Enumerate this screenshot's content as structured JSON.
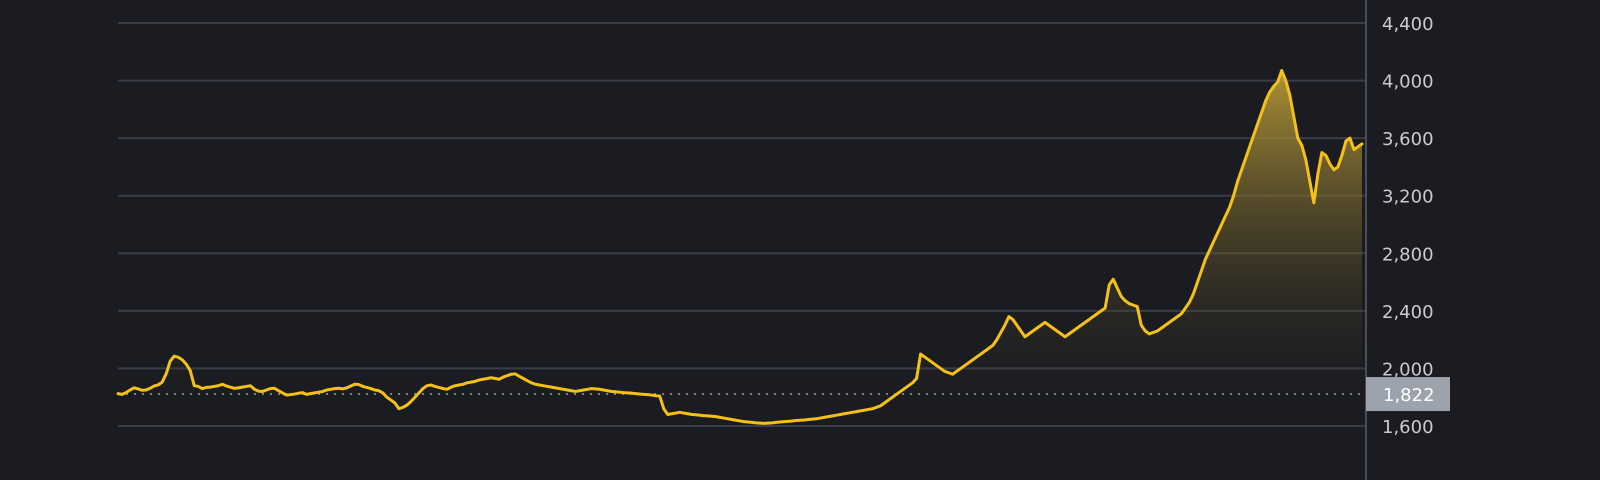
{
  "colors": {
    "background": "#1b1c21",
    "grid": "#3a3d46",
    "axis_line": "#4a4e58",
    "line": "#f3c117",
    "fill_top": "#c9a83a",
    "fill_bottom": "#1b1c21",
    "reference_line": "#9aa0ab",
    "badge_bg": "#9da3ad",
    "tick_text": "#c9cbd1"
  },
  "reference": {
    "value": 1822,
    "label": "1,822"
  },
  "chart_data": {
    "type": "area",
    "title": "",
    "xlabel": "",
    "ylabel": "",
    "grid": true,
    "y_axis_position": "right",
    "ylim": [
      1500,
      4500
    ],
    "y_ticks": [
      1600,
      2000,
      2400,
      2800,
      3200,
      3600,
      4000,
      4400
    ],
    "y_tick_labels": [
      "1,600",
      "2,000",
      "2,400",
      "2,800",
      "3,200",
      "3,600",
      "4,000",
      "4,400"
    ],
    "series": [
      {
        "values": [
          1825,
          1820,
          1832,
          1850,
          1865,
          1858,
          1848,
          1850,
          1862,
          1878,
          1885,
          1905,
          1962,
          2050,
          2085,
          2078,
          2060,
          2030,
          1985,
          1880,
          1875,
          1860,
          1868,
          1870,
          1875,
          1880,
          1890,
          1878,
          1870,
          1862,
          1865,
          1870,
          1875,
          1880,
          1855,
          1842,
          1840,
          1850,
          1860,
          1862,
          1845,
          1830,
          1815,
          1818,
          1822,
          1828,
          1832,
          1820,
          1825,
          1830,
          1835,
          1840,
          1850,
          1855,
          1860,
          1862,
          1858,
          1865,
          1878,
          1890,
          1888,
          1875,
          1868,
          1860,
          1850,
          1845,
          1830,
          1800,
          1780,
          1760,
          1720,
          1730,
          1745,
          1770,
          1800,
          1830,
          1860,
          1880,
          1885,
          1875,
          1868,
          1860,
          1855,
          1870,
          1880,
          1885,
          1890,
          1900,
          1905,
          1910,
          1920,
          1925,
          1930,
          1935,
          1930,
          1925,
          1940,
          1950,
          1960,
          1962,
          1945,
          1930,
          1915,
          1900,
          1890,
          1885,
          1880,
          1875,
          1870,
          1865,
          1860,
          1855,
          1850,
          1845,
          1840,
          1845,
          1850,
          1855,
          1860,
          1858,
          1855,
          1850,
          1845,
          1840,
          1838,
          1835,
          1832,
          1830,
          1828,
          1825,
          1822,
          1820,
          1818,
          1815,
          1810,
          1808,
          1720,
          1680,
          1685,
          1690,
          1695,
          1690,
          1685,
          1680,
          1678,
          1675,
          1672,
          1670,
          1668,
          1665,
          1660,
          1655,
          1650,
          1645,
          1640,
          1635,
          1630,
          1628,
          1625,
          1622,
          1620,
          1618,
          1620,
          1622,
          1625,
          1628,
          1630,
          1632,
          1635,
          1638,
          1640,
          1642,
          1645,
          1648,
          1650,
          1655,
          1660,
          1665,
          1670,
          1675,
          1680,
          1685,
          1690,
          1695,
          1700,
          1705,
          1710,
          1715,
          1720,
          1730,
          1740,
          1760,
          1780,
          1800,
          1820,
          1840,
          1860,
          1880,
          1900,
          1930,
          2100,
          2080,
          2060,
          2040,
          2020,
          2000,
          1980,
          1970,
          1960,
          1980,
          2000,
          2020,
          2040,
          2060,
          2080,
          2100,
          2120,
          2140,
          2160,
          2200,
          2250,
          2300,
          2360,
          2340,
          2300,
          2260,
          2220,
          2240,
          2260,
          2280,
          2300,
          2320,
          2300,
          2280,
          2260,
          2240,
          2220,
          2240,
          2260,
          2280,
          2300,
          2320,
          2340,
          2360,
          2380,
          2400,
          2420,
          2580,
          2620,
          2560,
          2500,
          2470,
          2450,
          2440,
          2430,
          2300,
          2260,
          2240,
          2250,
          2260,
          2280,
          2300,
          2320,
          2340,
          2360,
          2380,
          2420,
          2460,
          2520,
          2600,
          2680,
          2760,
          2820,
          2880,
          2940,
          3000,
          3060,
          3120,
          3200,
          3300,
          3380,
          3460,
          3540,
          3620,
          3700,
          3780,
          3860,
          3920,
          3960,
          3990,
          4070,
          4000,
          3900,
          3750,
          3600,
          3550,
          3450,
          3300,
          3150,
          3350,
          3500,
          3480,
          3420,
          3380,
          3400,
          3480,
          3580,
          3600,
          3520,
          3540,
          3560
        ]
      }
    ]
  }
}
